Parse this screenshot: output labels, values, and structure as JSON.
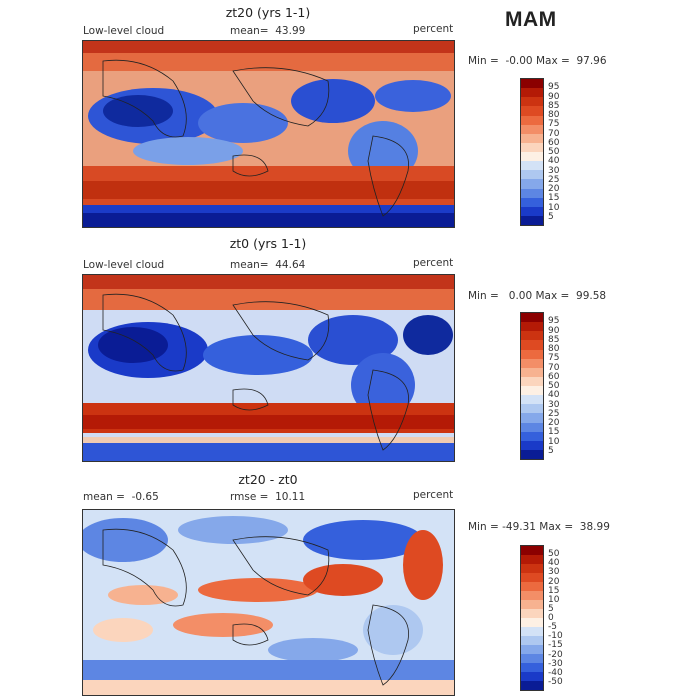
{
  "season": "MAM",
  "panels": [
    {
      "title": "zt20 (yrs 1-1)",
      "left_label": "Low-level cloud",
      "mid_label": "mean=  43.99",
      "units": "percent",
      "minmax": "Min =  -0.00 Max =  97.96",
      "colorbar_labels": [
        "95",
        "90",
        "85",
        "80",
        "75",
        "70",
        "60",
        "50",
        "40",
        "30",
        "25",
        "20",
        "15",
        "10",
        "5"
      ],
      "colorbar_colors": [
        "#8b0000",
        "#b41a06",
        "#cc3311",
        "#de4a22",
        "#ec6a3f",
        "#f38e67",
        "#f7b290",
        "#fbd5bd",
        "#fdf0e4",
        "#d3e2f6",
        "#aec8f0",
        "#85a8ea",
        "#5d86e3",
        "#3560dc",
        "#1a3ac8",
        "#0a1c95"
      ]
    },
    {
      "title": "zt0 (yrs 1-1)",
      "left_label": "Low-level cloud",
      "mid_label": "mean=  44.64",
      "units": "percent",
      "minmax": "Min =   0.00 Max =  99.58",
      "colorbar_labels": [
        "95",
        "90",
        "85",
        "80",
        "75",
        "70",
        "60",
        "50",
        "40",
        "30",
        "25",
        "20",
        "15",
        "10",
        "5"
      ],
      "colorbar_colors": [
        "#8b0000",
        "#b41a06",
        "#cc3311",
        "#de4a22",
        "#ec6a3f",
        "#f38e67",
        "#f7b290",
        "#fbd5bd",
        "#fdf0e4",
        "#d3e2f6",
        "#aec8f0",
        "#85a8ea",
        "#5d86e3",
        "#3560dc",
        "#1a3ac8",
        "#0a1c95"
      ]
    },
    {
      "title": "zt20 - zt0",
      "left_label": "mean =  -0.65",
      "mid_label": "rmse =  10.11",
      "units": "percent",
      "minmax": "Min = -49.31 Max =  38.99",
      "colorbar_labels": [
        "50",
        "40",
        "30",
        "20",
        "15",
        "10",
        "5",
        "0",
        "-5",
        "-10",
        "-15",
        "-20",
        "-30",
        "-40",
        "-50"
      ],
      "colorbar_colors": [
        "#8b0000",
        "#b41a06",
        "#cc3311",
        "#de4a22",
        "#ec6a3f",
        "#f38e67",
        "#f7b290",
        "#fbd5bd",
        "#fdf0e4",
        "#d3e2f6",
        "#aec8f0",
        "#85a8ea",
        "#5d86e3",
        "#3560dc",
        "#1a3ac8",
        "#0a1c95"
      ]
    }
  ]
}
